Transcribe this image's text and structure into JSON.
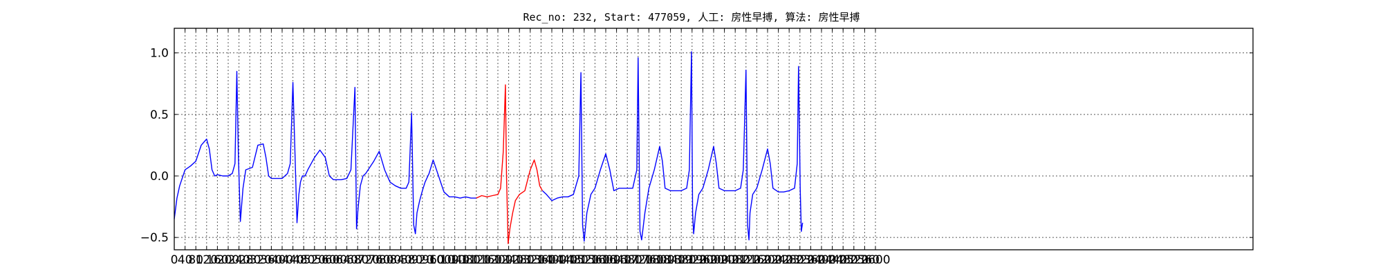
{
  "chart_data": {
    "type": "line",
    "title": "Rec_no: 232, Start: 477059, 人工: 房性早搏, 算法: 房性早搏",
    "xlabel": "",
    "ylabel": "",
    "xlim": [
      0,
      4000
    ],
    "ylim": [
      -0.6,
      1.2
    ],
    "grid": true,
    "yticks": [
      -0.5,
      0.0,
      0.5,
      1.0
    ],
    "ytick_labels": [
      "−0.5",
      "0.0",
      "0.5",
      "1.0"
    ],
    "xticks": [
      0,
      40,
      80,
      120,
      160,
      200,
      240,
      280,
      320,
      360,
      400,
      440,
      480,
      520,
      560,
      600,
      640,
      680,
      720,
      760,
      800,
      840,
      880,
      920,
      960,
      1000,
      1040,
      1080,
      1120,
      1160,
      1200,
      1240,
      1280,
      1320,
      1360,
      1400,
      1440,
      1480,
      1520,
      1560,
      1600,
      1640,
      1680,
      1720,
      1760,
      1800,
      1840,
      1880,
      1920,
      1960,
      2000,
      2040,
      2080,
      2120,
      2160,
      2200,
      2240,
      2280,
      2320,
      2360,
      2400,
      2440,
      2480,
      2520,
      2560,
      2600
    ],
    "series": [
      {
        "color": "#0000ff",
        "x": [
          0,
          10,
          20,
          40,
          60,
          80,
          100,
          120,
          130,
          140,
          150,
          160,
          180,
          200,
          215,
          225,
          232,
          238,
          245,
          255,
          265,
          290,
          310,
          330,
          340,
          350,
          360,
          380,
          400,
          420,
          430,
          440,
          455,
          462,
          468,
          475,
          485,
          495,
          520,
          540,
          560,
          575,
          590,
          600,
          620,
          640,
          655,
          670,
          676,
          682,
          690,
          700,
          710,
          740,
          760,
          780,
          800,
          820,
          840,
          860,
          870,
          880,
          888,
          894,
          900,
          910,
          920,
          930,
          945,
          960,
          980,
          1000,
          1020,
          1040,
          1060,
          1080,
          1100,
          1120
        ],
        "y": [
          -0.35,
          -0.18,
          -0.08,
          0.05,
          0.08,
          0.12,
          0.25,
          0.3,
          0.22,
          0.05,
          0.0,
          0.01,
          0.0,
          0.0,
          0.02,
          0.1,
          0.85,
          0.15,
          -0.37,
          -0.1,
          0.05,
          0.07,
          0.25,
          0.26,
          0.15,
          0.0,
          -0.02,
          -0.02,
          -0.02,
          0.02,
          0.1,
          0.76,
          -0.38,
          -0.15,
          -0.05,
          0.0,
          0.0,
          0.05,
          0.15,
          0.21,
          0.15,
          0.0,
          -0.03,
          -0.03,
          -0.03,
          -0.02,
          0.05,
          0.72,
          -0.43,
          -0.25,
          -0.08,
          0.0,
          0.02,
          0.12,
          0.2,
          0.05,
          -0.05,
          -0.08,
          -0.1,
          -0.1,
          -0.05,
          0.51,
          -0.4,
          -0.47,
          -0.3,
          -0.2,
          -0.12,
          -0.05,
          0.02,
          0.13,
          0.0,
          -0.13,
          -0.17,
          -0.17,
          -0.18,
          -0.17,
          -0.18,
          -0.18
        ]
      },
      {
        "color": "#ff0000",
        "x": [
          1120,
          1140,
          1160,
          1180,
          1200,
          1210,
          1220,
          1228,
          1232,
          1238,
          1245,
          1255,
          1265,
          1280,
          1300,
          1320,
          1335,
          1345,
          1355,
          1365
        ],
        "y": [
          -0.18,
          -0.16,
          -0.17,
          -0.16,
          -0.15,
          -0.1,
          0.2,
          0.74,
          0.0,
          -0.55,
          -0.42,
          -0.3,
          -0.2,
          -0.15,
          -0.12,
          0.05,
          0.13,
          0.05,
          -0.08,
          -0.12
        ]
      },
      {
        "color": "#0000ff",
        "x": [
          1365,
          1380,
          1400,
          1420,
          1440,
          1460,
          1480,
          1500,
          1508,
          1514,
          1520,
          1530,
          1545,
          1560,
          1580,
          1600,
          1615,
          1630,
          1650,
          1680,
          1700,
          1715,
          1720,
          1727,
          1733,
          1745,
          1760,
          1780,
          1800,
          1810,
          1820,
          1840,
          1860,
          1880,
          1900,
          1910,
          1918,
          1922,
          1926,
          1933,
          1945,
          1960,
          1980,
          2000,
          2010,
          2020,
          2040,
          2060,
          2080,
          2100,
          2110,
          2120,
          2126,
          2131,
          2135,
          2145,
          2160,
          2180,
          2200,
          2210,
          2220,
          2240,
          2260,
          2280,
          2300,
          2310,
          2315,
          2321,
          2325,
          2330
        ],
        "y": [
          -0.12,
          -0.15,
          -0.2,
          -0.18,
          -0.17,
          -0.17,
          -0.15,
          0.0,
          0.84,
          -0.4,
          -0.53,
          -0.3,
          -0.15,
          -0.1,
          0.05,
          0.18,
          0.05,
          -0.12,
          -0.1,
          -0.1,
          -0.1,
          0.05,
          0.96,
          -0.45,
          -0.52,
          -0.3,
          -0.1,
          0.05,
          0.24,
          0.12,
          -0.1,
          -0.12,
          -0.12,
          -0.12,
          -0.1,
          0.05,
          1.01,
          -0.3,
          -0.47,
          -0.3,
          -0.15,
          -0.1,
          0.05,
          0.24,
          0.1,
          -0.1,
          -0.12,
          -0.12,
          -0.12,
          -0.1,
          0.05,
          0.86,
          -0.4,
          -0.52,
          -0.3,
          -0.15,
          -0.1,
          0.05,
          0.22,
          0.1,
          -0.1,
          -0.13,
          -0.13,
          -0.12,
          -0.1,
          0.1,
          0.89,
          -0.1,
          -0.45,
          -0.38
        ]
      }
    ]
  }
}
